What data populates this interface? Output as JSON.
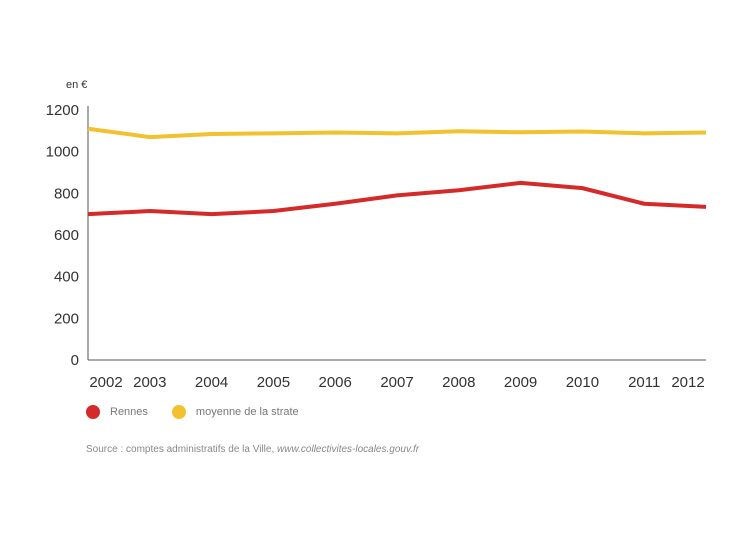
{
  "chart_data": {
    "type": "line",
    "title": "",
    "unit_label": "en €",
    "xlabel": "",
    "ylabel": "en €",
    "x": [
      "2002",
      "2003",
      "2004",
      "2005",
      "2006",
      "2007",
      "2008",
      "2009",
      "2010",
      "2011",
      "2012"
    ],
    "ylim": [
      0,
      1200
    ],
    "yticks": [
      0,
      200,
      400,
      600,
      800,
      1000,
      1200
    ],
    "grid": false,
    "legend_position": "bottom-left",
    "series": [
      {
        "name": "Rennes",
        "color": "#d42a2a",
        "values": [
          700,
          715,
          700,
          715,
          750,
          790,
          815,
          850,
          825,
          750,
          735
        ]
      },
      {
        "name": "moyenne de la strate",
        "color": "#f2c12e",
        "values": [
          1110,
          1070,
          1085,
          1088,
          1092,
          1088,
          1098,
          1093,
          1097,
          1088,
          1092
        ]
      }
    ]
  },
  "source": {
    "prefix": "Source : comptes administratifs de la Ville, ",
    "link": "www.collectivites-locales.gouv.fr"
  }
}
